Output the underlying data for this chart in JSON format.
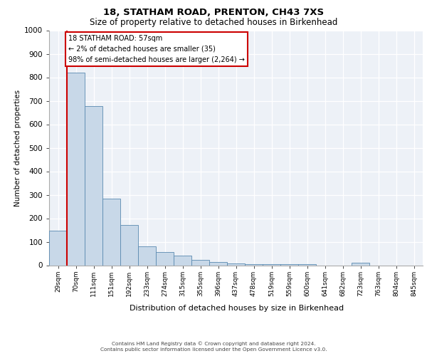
{
  "title1": "18, STATHAM ROAD, PRENTON, CH43 7XS",
  "title2": "Size of property relative to detached houses in Birkenhead",
  "xlabel": "Distribution of detached houses by size in Birkenhead",
  "ylabel": "Number of detached properties",
  "categories": [
    "29sqm",
    "70sqm",
    "111sqm",
    "151sqm",
    "192sqm",
    "233sqm",
    "274sqm",
    "315sqm",
    "355sqm",
    "396sqm",
    "437sqm",
    "478sqm",
    "519sqm",
    "559sqm",
    "600sqm",
    "641sqm",
    "682sqm",
    "723sqm",
    "763sqm",
    "804sqm",
    "845sqm"
  ],
  "values": [
    148,
    820,
    678,
    283,
    172,
    80,
    55,
    42,
    22,
    15,
    8,
    5,
    5,
    5,
    5,
    0,
    0,
    10,
    0,
    0,
    0
  ],
  "bar_color": "#c8d8e8",
  "bar_edge_color": "#5a8ab0",
  "annotation_box_color": "#cc0000",
  "annotation_line1": "18 STATHAM ROAD: 57sqm",
  "annotation_line2": "← 2% of detached houses are smaller (35)",
  "annotation_line3": "98% of semi-detached houses are larger (2,264) →",
  "property_line_color": "#cc0000",
  "background_color": "#edf1f7",
  "footer1": "Contains HM Land Registry data © Crown copyright and database right 2024.",
  "footer2": "Contains public sector information licensed under the Open Government Licence v3.0.",
  "ylim": [
    0,
    1000
  ],
  "yticks": [
    0,
    100,
    200,
    300,
    400,
    500,
    600,
    700,
    800,
    900,
    1000
  ]
}
